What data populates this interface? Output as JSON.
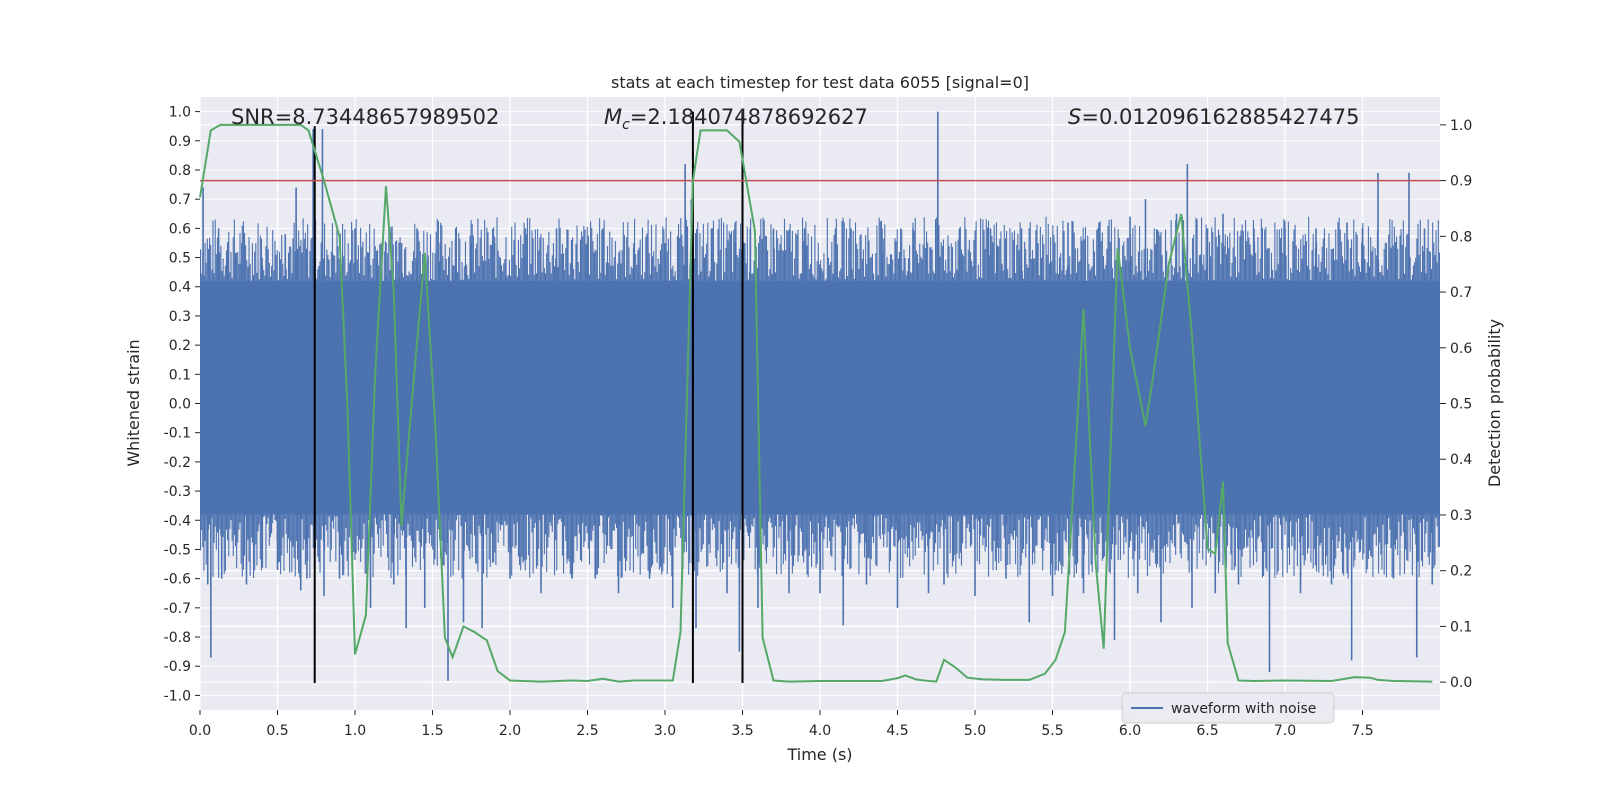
{
  "chart_data": {
    "type": "line",
    "title": "stats at each timestep for test data 6055 [signal=0]",
    "xlabel": "Time (s)",
    "ylabel": "Whitened strain",
    "ylabel_right": "Detection probability",
    "xlim": [
      0.0,
      8.0
    ],
    "ylim": [
      -1.05,
      1.05
    ],
    "ylim_right": [
      -0.05,
      1.05
    ],
    "x_ticks": [
      0.0,
      0.5,
      1.0,
      1.5,
      2.0,
      2.5,
      3.0,
      3.5,
      4.0,
      4.5,
      5.0,
      5.5,
      6.0,
      6.5,
      7.0,
      7.5
    ],
    "x_tick_labels": [
      "0.0",
      "0.5",
      "1.0",
      "1.5",
      "2.0",
      "2.5",
      "3.0",
      "3.5",
      "4.0",
      "4.5",
      "5.0",
      "5.5",
      "6.0",
      "6.5",
      "7.0",
      "7.5"
    ],
    "y_ticks": [
      -1.0,
      -0.9,
      -0.8,
      -0.7,
      -0.6,
      -0.5,
      -0.4,
      -0.3,
      -0.2,
      -0.1,
      0.0,
      0.1,
      0.2,
      0.3,
      0.4,
      0.5,
      0.6,
      0.7,
      0.8,
      0.9,
      1.0
    ],
    "y_tick_labels": [
      "-1.0",
      "-0.9",
      "-0.8",
      "-0.7",
      "-0.6",
      "-0.5",
      "-0.4",
      "-0.3",
      "-0.2",
      "-0.1",
      "0.0",
      "0.1",
      "0.2",
      "0.3",
      "0.4",
      "0.5",
      "0.6",
      "0.7",
      "0.8",
      "0.9",
      "1.0"
    ],
    "y_right_ticks": [
      0.0,
      0.1,
      0.2,
      0.3,
      0.4,
      0.5,
      0.6,
      0.7,
      0.8,
      0.9,
      1.0
    ],
    "y_right_tick_labels": [
      "0.0",
      "0.1",
      "0.2",
      "0.3",
      "0.4",
      "0.5",
      "0.6",
      "0.7",
      "0.8",
      "0.9",
      "1.0"
    ],
    "annotations": {
      "snr": "SNR=8.73448657989502",
      "mc_symbol": "M",
      "mc_subscript": "c",
      "mc_value": "=2.184074878692627",
      "s_symbol": "S",
      "s_value": "=0.012096162885427475"
    },
    "legend": {
      "label": "waveform with noise",
      "placement": "lower-right"
    },
    "threshold": {
      "value": 0.9,
      "axis": "right",
      "color": "#c44e52"
    },
    "vertical_lines": [
      {
        "x": 0.74,
        "y_range": [
          -1.05,
          0.95
        ]
      },
      {
        "x": 3.18,
        "y_range": [
          -1.05,
          1.0
        ]
      },
      {
        "x": 3.5,
        "y_range": [
          -1.05,
          1.0
        ]
      }
    ],
    "waveform": {
      "name": "waveform with noise",
      "color": "#4c72b0",
      "dense_band": [
        -0.38,
        0.42
      ],
      "spikes": [
        [
          0.02,
          0.74
        ],
        [
          0.05,
          -0.62
        ],
        [
          0.07,
          -0.87
        ],
        [
          0.12,
          0.6
        ],
        [
          0.14,
          -0.6
        ],
        [
          0.18,
          0.55
        ],
        [
          0.27,
          0.55
        ],
        [
          0.3,
          -0.62
        ],
        [
          0.4,
          0.5
        ],
        [
          0.5,
          -0.57
        ],
        [
          0.55,
          0.58
        ],
        [
          0.62,
          0.74
        ],
        [
          0.65,
          -0.64
        ],
        [
          0.69,
          -0.6
        ],
        [
          0.73,
          0.94
        ],
        [
          0.79,
          0.94
        ],
        [
          0.8,
          -0.66
        ],
        [
          0.9,
          -0.6
        ],
        [
          1.0,
          0.6
        ],
        [
          1.1,
          -0.7
        ],
        [
          1.2,
          0.55
        ],
        [
          1.25,
          -0.62
        ],
        [
          1.3,
          0.55
        ],
        [
          1.33,
          -0.77
        ],
        [
          1.4,
          0.6
        ],
        [
          1.45,
          -0.7
        ],
        [
          1.55,
          0.55
        ],
        [
          1.6,
          -0.95
        ],
        [
          1.65,
          0.6
        ],
        [
          1.7,
          -0.75
        ],
        [
          1.75,
          0.55
        ],
        [
          1.82,
          -0.77
        ],
        [
          1.9,
          0.55
        ],
        [
          2.0,
          -0.6
        ],
        [
          2.1,
          0.6
        ],
        [
          2.2,
          -0.65
        ],
        [
          2.3,
          0.6
        ],
        [
          2.4,
          -0.6
        ],
        [
          2.5,
          0.55
        ],
        [
          2.55,
          -0.6
        ],
        [
          2.6,
          0.6
        ],
        [
          2.7,
          -0.65
        ],
        [
          2.8,
          0.55
        ],
        [
          2.9,
          -0.6
        ],
        [
          3.0,
          0.55
        ],
        [
          3.05,
          -0.7
        ],
        [
          3.13,
          0.82
        ],
        [
          3.17,
          0.7
        ],
        [
          3.2,
          -0.77
        ],
        [
          3.3,
          0.6
        ],
        [
          3.4,
          -0.65
        ],
        [
          3.45,
          0.55
        ],
        [
          3.48,
          -0.85
        ],
        [
          3.55,
          0.6
        ],
        [
          3.6,
          -0.7
        ],
        [
          3.7,
          0.6
        ],
        [
          3.8,
          -0.65
        ],
        [
          3.9,
          0.6
        ],
        [
          4.0,
          -0.65
        ],
        [
          4.1,
          0.6
        ],
        [
          4.15,
          -0.76
        ],
        [
          4.2,
          0.6
        ],
        [
          4.3,
          -0.62
        ],
        [
          4.4,
          0.6
        ],
        [
          4.5,
          -0.7
        ],
        [
          4.6,
          0.6
        ],
        [
          4.7,
          -0.65
        ],
        [
          4.76,
          1.0
        ],
        [
          4.8,
          -0.62
        ],
        [
          4.9,
          0.6
        ],
        [
          5.0,
          -0.66
        ],
        [
          5.1,
          0.6
        ],
        [
          5.2,
          -0.6
        ],
        [
          5.3,
          0.6
        ],
        [
          5.35,
          -0.75
        ],
        [
          5.4,
          0.55
        ],
        [
          5.5,
          -0.66
        ],
        [
          5.6,
          0.62
        ],
        [
          5.7,
          -0.65
        ],
        [
          5.8,
          0.62
        ],
        [
          5.9,
          -0.81
        ],
        [
          6.0,
          0.64
        ],
        [
          6.05,
          -0.65
        ],
        [
          6.1,
          0.7
        ],
        [
          6.2,
          -0.75
        ],
        [
          6.3,
          0.65
        ],
        [
          6.37,
          0.82
        ],
        [
          6.4,
          -0.7
        ],
        [
          6.5,
          0.6
        ],
        [
          6.55,
          -0.65
        ],
        [
          6.6,
          0.65
        ],
        [
          6.7,
          -0.62
        ],
        [
          6.8,
          0.6
        ],
        [
          6.9,
          -0.92
        ],
        [
          7.0,
          0.6
        ],
        [
          7.1,
          -0.65
        ],
        [
          7.2,
          0.6
        ],
        [
          7.3,
          -0.62
        ],
        [
          7.4,
          0.62
        ],
        [
          7.43,
          -0.88
        ],
        [
          7.5,
          0.6
        ],
        [
          7.6,
          0.79
        ],
        [
          7.7,
          -0.6
        ],
        [
          7.8,
          0.79
        ],
        [
          7.85,
          -0.87
        ],
        [
          7.9,
          0.6
        ],
        [
          7.95,
          -0.62
        ]
      ]
    },
    "detection_probability": {
      "name": "detection probability",
      "color": "#55a868",
      "axis": "right",
      "x": [
        0.0,
        0.07,
        0.13,
        0.2,
        0.3,
        0.4,
        0.5,
        0.6,
        0.65,
        0.7,
        0.8,
        0.9,
        0.95,
        1.0,
        1.07,
        1.13,
        1.2,
        1.25,
        1.3,
        1.35,
        1.45,
        1.52,
        1.58,
        1.63,
        1.7,
        1.77,
        1.85,
        1.92,
        2.0,
        2.2,
        2.4,
        2.5,
        2.6,
        2.7,
        2.8,
        2.9,
        3.05,
        3.1,
        3.18,
        3.23,
        3.3,
        3.4,
        3.48,
        3.58,
        3.63,
        3.7,
        3.8,
        4.0,
        4.2,
        4.4,
        4.5,
        4.55,
        4.62,
        4.67,
        4.75,
        4.8,
        4.88,
        4.95,
        5.05,
        5.2,
        5.35,
        5.45,
        5.52,
        5.58,
        5.65,
        5.7,
        5.78,
        5.83,
        5.92,
        6.0,
        6.1,
        6.15,
        6.25,
        6.33,
        6.4,
        6.5,
        6.55,
        6.6,
        6.63,
        6.7,
        6.8,
        7.0,
        7.3,
        7.45,
        7.55,
        7.6,
        7.7,
        7.95
      ],
      "values": [
        0.87,
        0.99,
        1.0,
        1.0,
        1.0,
        1.0,
        1.0,
        1.0,
        1.0,
        0.99,
        0.9,
        0.8,
        0.5,
        0.05,
        0.12,
        0.55,
        0.89,
        0.7,
        0.28,
        0.45,
        0.77,
        0.45,
        0.08,
        0.045,
        0.1,
        0.09,
        0.075,
        0.02,
        0.003,
        0.001,
        0.003,
        0.002,
        0.006,
        0.001,
        0.003,
        0.003,
        0.003,
        0.09,
        0.9,
        0.99,
        0.99,
        0.99,
        0.97,
        0.81,
        0.08,
        0.003,
        0.001,
        0.002,
        0.002,
        0.002,
        0.007,
        0.012,
        0.005,
        0.003,
        0.001,
        0.04,
        0.025,
        0.008,
        0.005,
        0.004,
        0.004,
        0.015,
        0.04,
        0.09,
        0.42,
        0.67,
        0.21,
        0.06,
        0.78,
        0.6,
        0.46,
        0.55,
        0.75,
        0.84,
        0.62,
        0.24,
        0.23,
        0.36,
        0.07,
        0.003,
        0.002,
        0.003,
        0.002,
        0.009,
        0.008,
        0.004,
        0.002,
        0.001
      ]
    }
  }
}
